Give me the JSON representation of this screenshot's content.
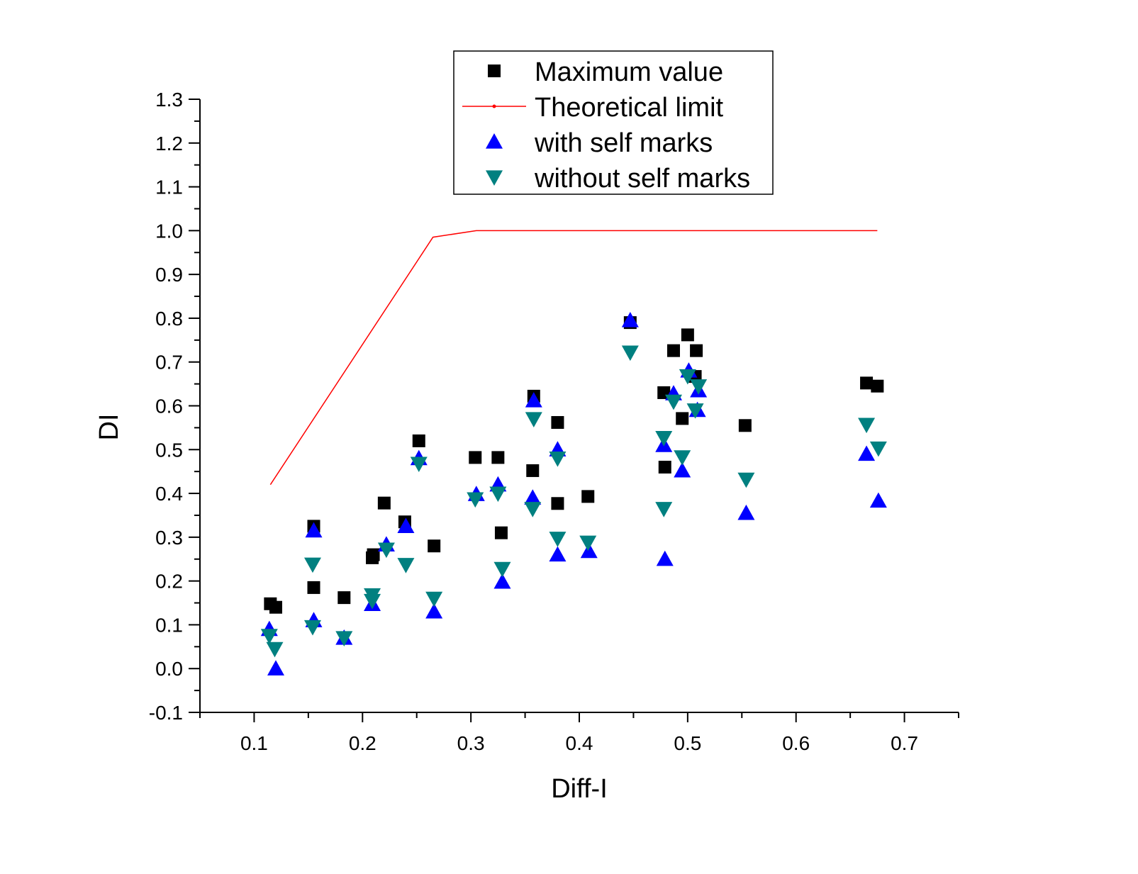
{
  "chart_data": {
    "type": "scatter",
    "title": "",
    "xlabel": "Diff-I",
    "ylabel": "DI",
    "xlim": [
      0.05,
      0.75
    ],
    "ylim": [
      -0.1,
      1.3
    ],
    "xticks": [
      0.1,
      0.2,
      0.3,
      0.4,
      0.5,
      0.6,
      0.7
    ],
    "xtick_labels": [
      "0.1",
      "0.2",
      "0.3",
      "0.4",
      "0.5",
      "0.6",
      "0.7"
    ],
    "yticks": [
      -0.1,
      0.0,
      0.1,
      0.2,
      0.3,
      0.4,
      0.5,
      0.6,
      0.7,
      0.8,
      0.9,
      1.0,
      1.1,
      1.2,
      1.3
    ],
    "ytick_labels": [
      "-0.1",
      "0.0",
      "0.1",
      "0.2",
      "0.3",
      "0.4",
      "0.5",
      "0.6",
      "0.7",
      "0.8",
      "0.9",
      "1.0",
      "1.1",
      "1.2",
      "1.3"
    ],
    "grid": false,
    "legend_position": "top-center",
    "series": [
      {
        "name": "Maximum value",
        "marker": "square",
        "color": "#000000",
        "points": [
          [
            0.115,
            0.148
          ],
          [
            0.12,
            0.14
          ],
          [
            0.155,
            0.325
          ],
          [
            0.155,
            0.185
          ],
          [
            0.183,
            0.162
          ],
          [
            0.209,
            0.253
          ],
          [
            0.21,
            0.26
          ],
          [
            0.22,
            0.378
          ],
          [
            0.239,
            0.335
          ],
          [
            0.252,
            0.52
          ],
          [
            0.266,
            0.28
          ],
          [
            0.304,
            0.482
          ],
          [
            0.325,
            0.482
          ],
          [
            0.328,
            0.31
          ],
          [
            0.357,
            0.452
          ],
          [
            0.358,
            0.622
          ],
          [
            0.38,
            0.562
          ],
          [
            0.38,
            0.377
          ],
          [
            0.408,
            0.393
          ],
          [
            0.447,
            0.79
          ],
          [
            0.478,
            0.63
          ],
          [
            0.479,
            0.46
          ],
          [
            0.487,
            0.726
          ],
          [
            0.495,
            0.571
          ],
          [
            0.5,
            0.762
          ],
          [
            0.507,
            0.667
          ],
          [
            0.508,
            0.726
          ],
          [
            0.553,
            0.555
          ],
          [
            0.665,
            0.652
          ],
          [
            0.675,
            0.645
          ]
        ]
      },
      {
        "name": "Theoretical limit",
        "marker": "line",
        "color": "#ff0000",
        "points": [
          [
            0.115,
            0.42
          ],
          [
            0.265,
            0.985
          ],
          [
            0.305,
            1.0
          ],
          [
            0.675,
            1.0
          ]
        ]
      },
      {
        "name": "with self marks",
        "marker": "triangle-up",
        "color": "#0000ff",
        "points": [
          [
            0.114,
            0.09
          ],
          [
            0.12,
            0.0
          ],
          [
            0.155,
            0.315
          ],
          [
            0.155,
            0.11
          ],
          [
            0.183,
            0.07
          ],
          [
            0.209,
            0.147
          ],
          [
            0.222,
            0.283
          ],
          [
            0.24,
            0.325
          ],
          [
            0.252,
            0.48
          ],
          [
            0.266,
            0.13
          ],
          [
            0.305,
            0.398
          ],
          [
            0.325,
            0.42
          ],
          [
            0.329,
            0.198
          ],
          [
            0.357,
            0.39
          ],
          [
            0.358,
            0.612
          ],
          [
            0.38,
            0.5
          ],
          [
            0.38,
            0.26
          ],
          [
            0.409,
            0.268
          ],
          [
            0.447,
            0.795
          ],
          [
            0.478,
            0.51
          ],
          [
            0.479,
            0.25
          ],
          [
            0.487,
            0.628
          ],
          [
            0.495,
            0.452
          ],
          [
            0.501,
            0.68
          ],
          [
            0.509,
            0.59
          ],
          [
            0.51,
            0.635
          ],
          [
            0.554,
            0.355
          ],
          [
            0.665,
            0.49
          ],
          [
            0.676,
            0.383
          ]
        ]
      },
      {
        "name": "without self marks",
        "marker": "triangle-down",
        "color": "#008080",
        "points": [
          [
            0.114,
            0.075
          ],
          [
            0.119,
            0.045
          ],
          [
            0.154,
            0.238
          ],
          [
            0.154,
            0.095
          ],
          [
            0.183,
            0.07
          ],
          [
            0.209,
            0.168
          ],
          [
            0.209,
            0.155
          ],
          [
            0.222,
            0.272
          ],
          [
            0.24,
            0.237
          ],
          [
            0.252,
            0.468
          ],
          [
            0.266,
            0.16
          ],
          [
            0.304,
            0.387
          ],
          [
            0.325,
            0.4
          ],
          [
            0.329,
            0.228
          ],
          [
            0.357,
            0.365
          ],
          [
            0.358,
            0.57
          ],
          [
            0.38,
            0.48
          ],
          [
            0.38,
            0.297
          ],
          [
            0.408,
            0.288
          ],
          [
            0.447,
            0.722
          ],
          [
            0.478,
            0.527
          ],
          [
            0.478,
            0.365
          ],
          [
            0.487,
            0.61
          ],
          [
            0.495,
            0.483
          ],
          [
            0.5,
            0.668
          ],
          [
            0.507,
            0.59
          ],
          [
            0.51,
            0.645
          ],
          [
            0.554,
            0.432
          ],
          [
            0.665,
            0.557
          ],
          [
            0.676,
            0.503
          ]
        ]
      }
    ]
  }
}
